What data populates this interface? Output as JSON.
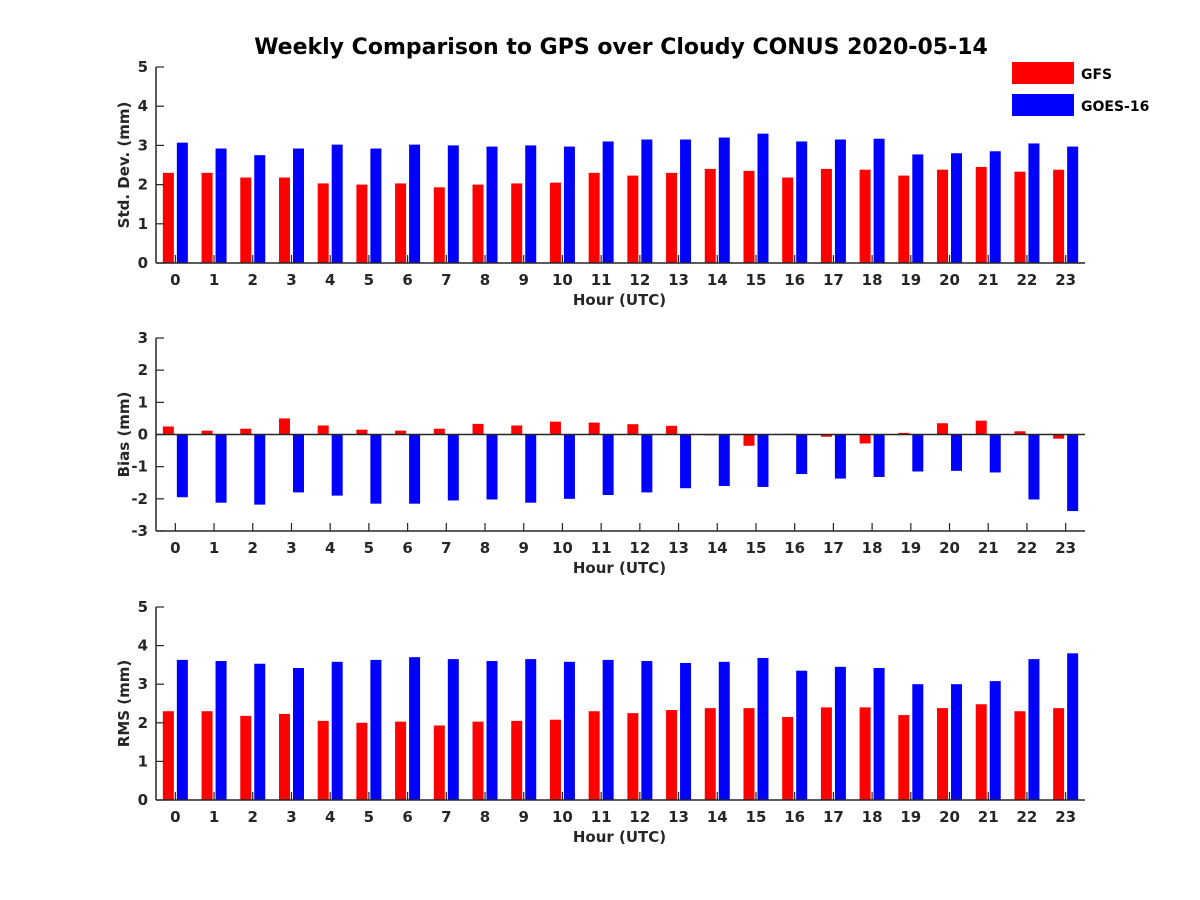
{
  "title": "Weekly Comparison to GPS over Cloudy CONUS 2020-05-14",
  "colors": {
    "GFS": "#ff0000",
    "GOES-16": "#0000ff"
  },
  "chart_data": [
    {
      "type": "bar",
      "title": "Weekly Comparison to GPS over Cloudy CONUS 2020-05-14",
      "xlabel": "Hour (UTC)",
      "ylabel": "Std. Dev. (mm)",
      "ylim": [
        0,
        5
      ],
      "yticks": [
        "0",
        "1",
        "2",
        "3",
        "4",
        "5"
      ],
      "categories": [
        "0",
        "1",
        "2",
        "3",
        "4",
        "5",
        "6",
        "7",
        "8",
        "9",
        "10",
        "11",
        "12",
        "13",
        "14",
        "15",
        "16",
        "17",
        "18",
        "19",
        "20",
        "21",
        "22",
        "23"
      ],
      "legend": "top-right",
      "series": [
        {
          "name": "GFS",
          "values": [
            2.3,
            2.3,
            2.18,
            2.18,
            2.03,
            2.0,
            2.03,
            1.93,
            2.0,
            2.03,
            2.05,
            2.3,
            2.23,
            2.3,
            2.4,
            2.35,
            2.18,
            2.4,
            2.38,
            2.23,
            2.38,
            2.45,
            2.33,
            2.38
          ]
        },
        {
          "name": "GOES-16",
          "values": [
            3.07,
            2.92,
            2.75,
            2.92,
            3.02,
            2.92,
            3.02,
            3.0,
            2.97,
            3.0,
            2.97,
            3.1,
            3.15,
            3.15,
            3.2,
            3.3,
            3.1,
            3.15,
            3.17,
            2.77,
            2.8,
            2.85,
            3.05,
            2.97
          ]
        }
      ]
    },
    {
      "type": "bar",
      "xlabel": "Hour (UTC)",
      "ylabel": "Bias (mm)",
      "ylim": [
        -3,
        3
      ],
      "yticks": [
        "-3",
        "-2",
        "-1",
        "0",
        "1",
        "2",
        "3"
      ],
      "categories": [
        "0",
        "1",
        "2",
        "3",
        "4",
        "5",
        "6",
        "7",
        "8",
        "9",
        "10",
        "11",
        "12",
        "13",
        "14",
        "15",
        "16",
        "17",
        "18",
        "19",
        "20",
        "21",
        "22",
        "23"
      ],
      "series": [
        {
          "name": "GFS",
          "values": [
            0.25,
            0.12,
            0.18,
            0.5,
            0.28,
            0.15,
            0.12,
            0.18,
            0.33,
            0.28,
            0.4,
            0.37,
            0.32,
            0.27,
            -0.03,
            -0.35,
            0.02,
            -0.07,
            -0.28,
            0.05,
            0.35,
            0.43,
            0.1,
            -0.13
          ]
        },
        {
          "name": "GOES-16",
          "values": [
            -1.95,
            -2.12,
            -2.18,
            -1.8,
            -1.9,
            -2.15,
            -2.15,
            -2.05,
            -2.02,
            -2.12,
            -2.0,
            -1.88,
            -1.8,
            -1.67,
            -1.6,
            -1.63,
            -1.23,
            -1.37,
            -1.32,
            -1.15,
            -1.13,
            -1.18,
            -2.02,
            -2.38
          ]
        }
      ]
    },
    {
      "type": "bar",
      "xlabel": "Hour (UTC)",
      "ylabel": "RMS (mm)",
      "ylim": [
        0,
        5
      ],
      "yticks": [
        "0",
        "1",
        "2",
        "3",
        "4",
        "5"
      ],
      "categories": [
        "0",
        "1",
        "2",
        "3",
        "4",
        "5",
        "6",
        "7",
        "8",
        "9",
        "10",
        "11",
        "12",
        "13",
        "14",
        "15",
        "16",
        "17",
        "18",
        "19",
        "20",
        "21",
        "22",
        "23"
      ],
      "series": [
        {
          "name": "GFS",
          "values": [
            2.3,
            2.3,
            2.18,
            2.23,
            2.05,
            2.0,
            2.03,
            1.93,
            2.03,
            2.05,
            2.08,
            2.3,
            2.25,
            2.33,
            2.38,
            2.38,
            2.15,
            2.4,
            2.4,
            2.2,
            2.38,
            2.48,
            2.3,
            2.38
          ]
        },
        {
          "name": "GOES-16",
          "values": [
            3.63,
            3.6,
            3.53,
            3.42,
            3.58,
            3.63,
            3.7,
            3.65,
            3.6,
            3.65,
            3.58,
            3.63,
            3.6,
            3.55,
            3.58,
            3.68,
            3.35,
            3.45,
            3.42,
            3.0,
            3.0,
            3.08,
            3.65,
            3.8
          ]
        }
      ]
    }
  ]
}
